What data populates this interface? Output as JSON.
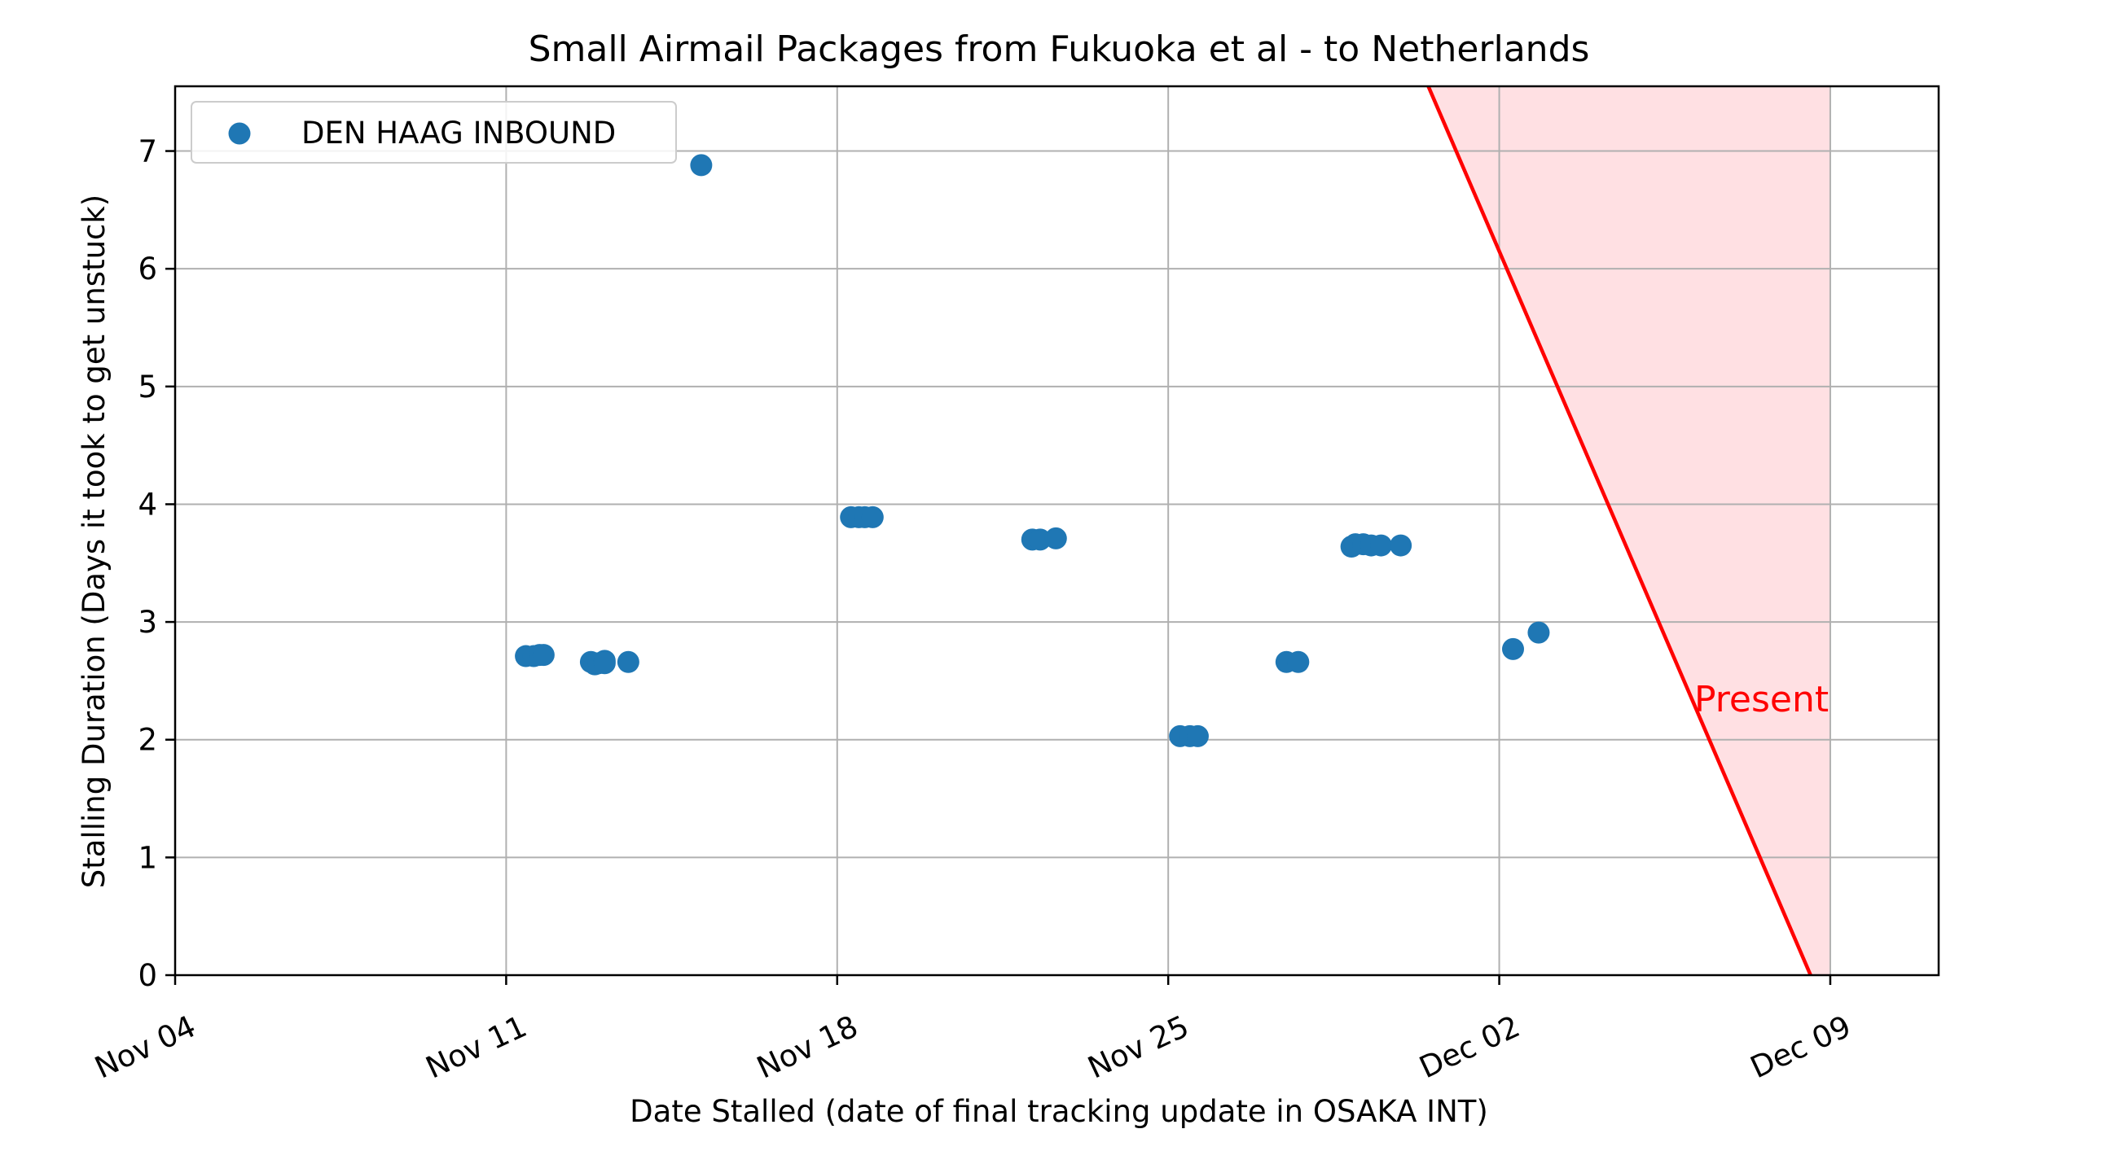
{
  "chart_data": {
    "type": "scatter",
    "title": "Small Airmail Packages from Fukuoka et al - to Netherlands",
    "xlabel": "Date Stalled (date of final tracking update in OSAKA INT)",
    "ylabel": "Stalling Duration (Days it took to get unstuck)",
    "x_axis_type": "date",
    "xlim": [
      "2024-11-04",
      "2024-12-11T07:00"
    ],
    "ylim": [
      0,
      7.55
    ],
    "x_ticks": [
      {
        "value": "2024-11-04",
        "label": "Nov 04"
      },
      {
        "value": "2024-11-11",
        "label": "Nov 11"
      },
      {
        "value": "2024-11-18",
        "label": "Nov 18"
      },
      {
        "value": "2024-11-25",
        "label": "Nov 25"
      },
      {
        "value": "2024-12-02",
        "label": "Dec 02"
      },
      {
        "value": "2024-12-09",
        "label": "Dec 09"
      }
    ],
    "y_ticks": [
      0,
      1,
      2,
      3,
      4,
      5,
      6,
      7
    ],
    "grid": true,
    "legend": {
      "placement": "upper left",
      "entries": [
        "DEN HAAG INBOUND"
      ]
    },
    "series": [
      {
        "name": "DEN HAAG INBOUND",
        "color": "#1f77b4",
        "points": [
          {
            "x": "2024-11-11T10:00",
            "y": 2.71
          },
          {
            "x": "2024-11-11T14:00",
            "y": 2.71
          },
          {
            "x": "2024-11-11T17:00",
            "y": 2.72
          },
          {
            "x": "2024-11-11T19:00",
            "y": 2.72
          },
          {
            "x": "2024-11-12T19:00",
            "y": 2.66
          },
          {
            "x": "2024-11-12T21:00",
            "y": 2.64
          },
          {
            "x": "2024-11-12T23:00",
            "y": 2.65
          },
          {
            "x": "2024-11-13T02:00",
            "y": 2.67
          },
          {
            "x": "2024-11-13T02:00",
            "y": 2.65
          },
          {
            "x": "2024-11-13T14:00",
            "y": 2.66
          },
          {
            "x": "2024-11-15T03:00",
            "y": 6.88
          },
          {
            "x": "2024-11-18T07:00",
            "y": 3.89
          },
          {
            "x": "2024-11-18T11:00",
            "y": 3.89
          },
          {
            "x": "2024-11-18T14:00",
            "y": 3.89
          },
          {
            "x": "2024-11-18T18:00",
            "y": 3.89
          },
          {
            "x": "2024-11-22T03:00",
            "y": 3.7
          },
          {
            "x": "2024-11-22T07:00",
            "y": 3.7
          },
          {
            "x": "2024-11-22T15:00",
            "y": 3.71
          },
          {
            "x": "2024-11-25T06:00",
            "y": 2.03
          },
          {
            "x": "2024-11-25T11:00",
            "y": 2.03
          },
          {
            "x": "2024-11-25T15:00",
            "y": 2.03
          },
          {
            "x": "2024-11-27T12:00",
            "y": 2.66
          },
          {
            "x": "2024-11-27T18:00",
            "y": 2.66
          },
          {
            "x": "2024-11-28T21:00",
            "y": 3.64
          },
          {
            "x": "2024-11-28T23:00",
            "y": 3.66
          },
          {
            "x": "2024-11-29T03:00",
            "y": 3.66
          },
          {
            "x": "2024-11-29T07:00",
            "y": 3.65
          },
          {
            "x": "2024-11-29T12:00",
            "y": 3.65
          },
          {
            "x": "2024-11-29T22:00",
            "y": 3.65
          },
          {
            "x": "2024-12-02T07:00",
            "y": 2.77
          },
          {
            "x": "2024-12-02T20:00",
            "y": 2.91
          }
        ]
      }
    ],
    "annotation": {
      "text": "Present",
      "color": "#ff0000",
      "line": [
        {
          "x": "2024-11-30T12:00",
          "y": 7.55
        },
        {
          "x": "2024-12-08T14:00",
          "y": 0
        }
      ],
      "shade_to_x": "2024-12-09",
      "shade_color": "#ffe0e3",
      "label_position": {
        "x": "2024-12-06T03:00",
        "y": 2.35
      }
    }
  }
}
